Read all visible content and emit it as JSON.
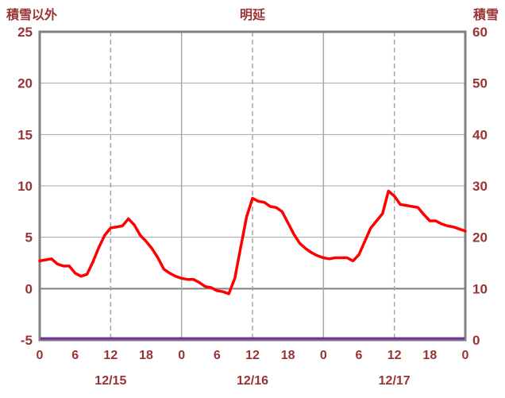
{
  "header": {
    "left_axis_title": "積雪以外",
    "title": "明延",
    "right_axis_title": "積雪"
  },
  "colors": {
    "background": "#FFFFFF",
    "text": "#993333",
    "frame": "#808080",
    "grid": "#A6A6A6",
    "zero_line": "#808080",
    "temp_line": "#FF0000",
    "snow_line": "#7030A0"
  },
  "chart_data": {
    "type": "line",
    "title": "明延",
    "x_hours_max": 72,
    "left_axis": {
      "title": "積雪以外",
      "min": -5,
      "max": 25,
      "ticks": [
        25,
        20,
        15,
        10,
        5,
        0,
        -5
      ]
    },
    "right_axis": {
      "title": "積雪",
      "min": 0,
      "max": 60,
      "ticks": [
        60,
        50,
        40,
        30,
        20,
        10,
        0
      ]
    },
    "x_ticks": [
      {
        "hour": 0,
        "label": "0"
      },
      {
        "hour": 6,
        "label": "6"
      },
      {
        "hour": 12,
        "label": "12"
      },
      {
        "hour": 18,
        "label": "18"
      },
      {
        "hour": 24,
        "label": "0"
      },
      {
        "hour": 30,
        "label": "6"
      },
      {
        "hour": 36,
        "label": "12"
      },
      {
        "hour": 42,
        "label": "18"
      },
      {
        "hour": 48,
        "label": "0"
      },
      {
        "hour": 54,
        "label": "6"
      },
      {
        "hour": 60,
        "label": "12"
      },
      {
        "hour": 66,
        "label": "18"
      },
      {
        "hour": 72,
        "label": "0"
      }
    ],
    "date_labels": [
      {
        "hour": 12,
        "label": "12/15"
      },
      {
        "hour": 36,
        "label": "12/16"
      },
      {
        "hour": 60,
        "label": "12/17"
      }
    ],
    "grid": {
      "h_interval_left": 5,
      "v_solid_hours": [
        24,
        48
      ],
      "v_dashed_hours": [
        12,
        36,
        60
      ]
    },
    "series": [
      {
        "name": "積雪以外",
        "axis": "left",
        "color": "#FF0000",
        "interval_hours": 1,
        "values": [
          2.7,
          2.8,
          2.9,
          2.4,
          2.2,
          2.2,
          1.5,
          1.2,
          1.4,
          2.6,
          4.0,
          5.2,
          5.9,
          6.0,
          6.1,
          6.8,
          6.2,
          5.2,
          4.6,
          3.9,
          3.0,
          1.9,
          1.5,
          1.2,
          1.0,
          0.9,
          0.9,
          0.6,
          0.2,
          0.1,
          -0.2,
          -0.3,
          -0.5,
          1.0,
          4.0,
          7.0,
          8.8,
          8.5,
          8.4,
          8.0,
          7.9,
          7.5,
          6.4,
          5.3,
          4.4,
          3.9,
          3.5,
          3.2,
          3.0,
          2.9,
          3.0,
          3.0,
          3.0,
          2.7,
          3.3,
          4.6,
          5.9,
          6.6,
          7.3,
          9.5,
          9.0,
          8.2,
          8.1,
          8.0,
          7.9,
          7.2,
          6.6,
          6.6,
          6.3,
          6.1,
          6.0,
          5.8,
          5.6
        ]
      },
      {
        "name": "積雪",
        "axis": "right",
        "color": "#7030A0",
        "constant_value": 0
      }
    ]
  }
}
